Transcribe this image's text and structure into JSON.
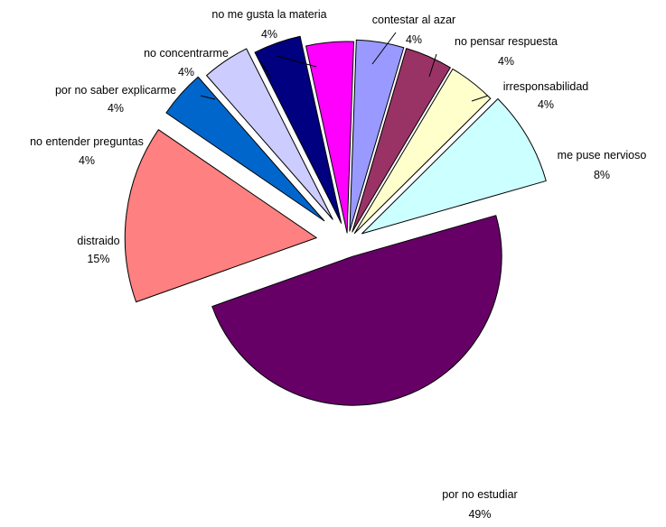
{
  "chart_data": {
    "type": "pie",
    "exploded": true,
    "legend": "none",
    "slices": [
      {
        "label": "contestar al azar",
        "value": 4,
        "percent_label": "4%",
        "color": "#9999ff"
      },
      {
        "label": "no pensar respuesta",
        "value": 4,
        "percent_label": "4%",
        "color": "#993366"
      },
      {
        "label": "irresponsabilidad",
        "value": 4,
        "percent_label": "4%",
        "color": "#ffffcc"
      },
      {
        "label": "me puse nervioso",
        "value": 8,
        "percent_label": "8%",
        "color": "#ccffff"
      },
      {
        "label": "por no estudiar",
        "value": 49,
        "percent_label": "49%",
        "color": "#660066"
      },
      {
        "label": "distraido",
        "value": 15,
        "percent_label": "15%",
        "color": "#ff8080"
      },
      {
        "label": "no entender preguntas",
        "value": 4,
        "percent_label": "4%",
        "color": "#0066cc"
      },
      {
        "label": "por no saber explicarme",
        "value": 4,
        "percent_label": "4%",
        "color": "#ccccff"
      },
      {
        "label": "no concentrarme",
        "value": 4,
        "percent_label": "4%",
        "color": "#000080"
      },
      {
        "label": "no me gusta la materia",
        "value": 4,
        "percent_label": "4%",
        "color": "#ff00ff"
      }
    ]
  }
}
